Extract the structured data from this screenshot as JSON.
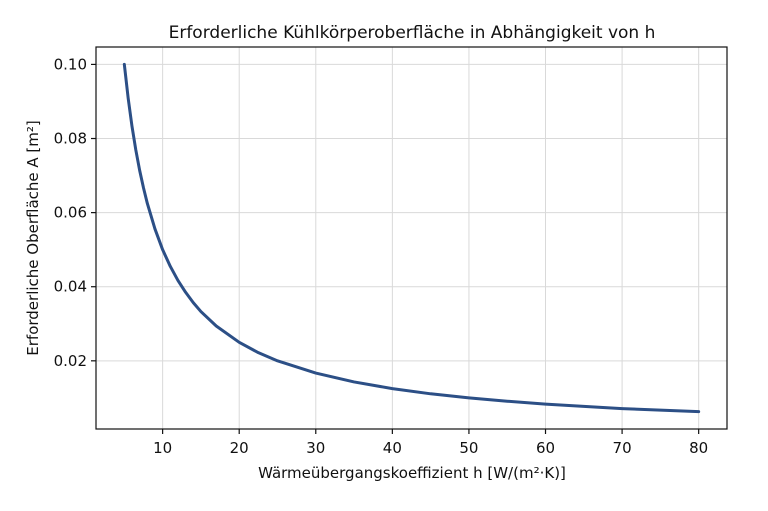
{
  "chart_data": {
    "type": "line",
    "title": "Erforderliche Kühlkörperoberfläche in Abhängigkeit von h",
    "xlabel": "Wärmeübergangskoeffizient h [W/(m²·K)]",
    "ylabel": "Erforderliche Oberfläche A [m²]",
    "xlim": [
      1.3,
      83.7
    ],
    "ylim": [
      0.0016,
      0.1047
    ],
    "xticks": [
      10,
      20,
      30,
      40,
      50,
      60,
      70,
      80
    ],
    "xtick_labels": [
      "10",
      "20",
      "30",
      "40",
      "50",
      "60",
      "70",
      "80"
    ],
    "yticks": [
      0.02,
      0.04,
      0.06,
      0.08,
      0.1
    ],
    "ytick_labels": [
      "0.02",
      "0.04",
      "0.06",
      "0.08",
      "0.10"
    ],
    "grid": true,
    "series": [
      {
        "color": "#2c4f86",
        "x": [
          5,
          5.5,
          6,
          6.5,
          7,
          7.5,
          8,
          9,
          10,
          11,
          12,
          13,
          14,
          15,
          17,
          20,
          22.5,
          25,
          30,
          35,
          40,
          45,
          50,
          55,
          60,
          65,
          70,
          75,
          80
        ],
        "y": [
          0.1,
          0.0909,
          0.0833,
          0.0769,
          0.0714,
          0.0667,
          0.0625,
          0.0556,
          0.05,
          0.0455,
          0.0417,
          0.0385,
          0.0357,
          0.0333,
          0.0294,
          0.025,
          0.0222,
          0.02,
          0.0167,
          0.0143,
          0.0125,
          0.0111,
          0.01,
          0.0091,
          0.0083,
          0.0077,
          0.0071,
          0.0067,
          0.0063
        ]
      }
    ]
  }
}
